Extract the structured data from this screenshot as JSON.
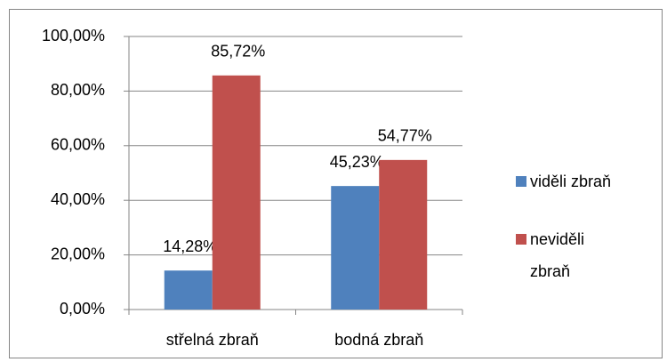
{
  "chart_data": {
    "type": "bar",
    "categories": [
      "střelná zbraň",
      "bodná zbraň"
    ],
    "series": [
      {
        "name": "viděli zbraň",
        "color": "#4f81bd",
        "values": [
          14.28,
          45.23
        ],
        "value_labels": [
          "14,28%",
          "45,23%"
        ]
      },
      {
        "name": "neviděli zbraň",
        "color": "#c0504d",
        "values": [
          85.72,
          54.77
        ],
        "value_labels": [
          "85,72%",
          "54,77%"
        ]
      }
    ],
    "ylim": [
      0,
      100
    ],
    "yticks": [
      {
        "value": 0,
        "label": "0,00%"
      },
      {
        "value": 20,
        "label": "20,00%"
      },
      {
        "value": 40,
        "label": "40,00%"
      },
      {
        "value": 60,
        "label": "60,00%"
      },
      {
        "value": 80,
        "label": "80,00%"
      },
      {
        "value": 100,
        "label": "100,00%"
      }
    ],
    "grid": true,
    "legend": "right"
  }
}
